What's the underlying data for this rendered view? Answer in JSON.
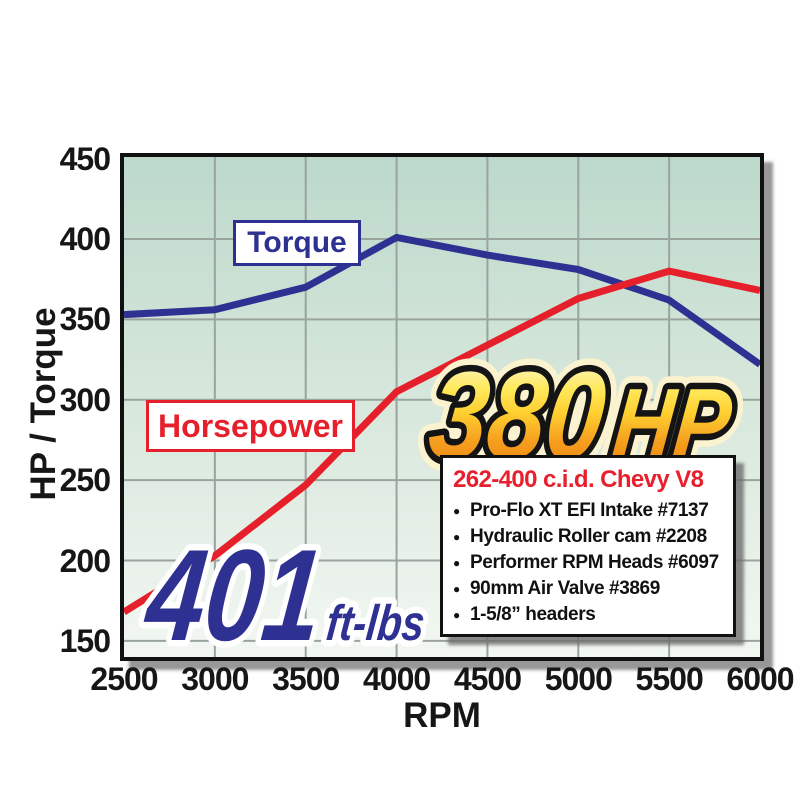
{
  "chart_data": {
    "type": "line",
    "xlabel": "RPM",
    "ylabel": "HP / Torque",
    "xlim": [
      2500,
      6000
    ],
    "ylim": [
      150,
      450
    ],
    "grid": true,
    "x_ticks": [
      2500,
      3000,
      3500,
      4000,
      4500,
      5000,
      5500,
      6000
    ],
    "y_ticks": [
      150,
      200,
      250,
      300,
      350,
      400,
      450
    ],
    "x": [
      2500,
      3000,
      3500,
      4000,
      4500,
      5000,
      5500,
      6000
    ],
    "series": [
      {
        "name": "Torque",
        "unit": "ft-lbs",
        "color": "#2e3192",
        "values": [
          353,
          356,
          370,
          401,
          390,
          381,
          362,
          322
        ]
      },
      {
        "name": "Horsepower",
        "unit": "HP",
        "color": "#e6202a",
        "values": [
          168,
          203,
          247,
          305,
          334,
          363,
          380,
          368
        ]
      }
    ],
    "annotations": {
      "torque_peak": {
        "value": "401",
        "unit": "ft-lbs"
      },
      "hp_peak": {
        "value": "380",
        "unit": "HP"
      }
    },
    "legend_position": "on-plot boxes near each curve"
  },
  "specs_box": {
    "title": "262-400 c.i.d. Chevy V8",
    "items": [
      "Pro-Flo XT EFI Intake #7137",
      "Hydraulic Roller cam #2208",
      "Performer RPM Heads #6097",
      "90mm Air Valve #3869",
      "1-5/8” headers"
    ]
  },
  "colors": {
    "torque_blue": "#2e3192",
    "horsepower_red": "#e6202a",
    "gridline": "#9aa49e",
    "plot_border": "#111111",
    "bg_top": "#bcd9cb",
    "bg_mid": "#d5e6da",
    "bg_bottom": "#f3f7f2",
    "tick_text": "#161616",
    "outline_black": "#141414",
    "halo_cream": "#fbf3cf",
    "white_outline": "#ffffff",
    "gold_top": "#fdf8dc",
    "gold_mid": "#ffe95c",
    "gold_mid2": "#fecf30",
    "gold_low": "#f6a01f",
    "gold_bottom": "#ee8b14",
    "specs_title_red": "#e8202d"
  }
}
